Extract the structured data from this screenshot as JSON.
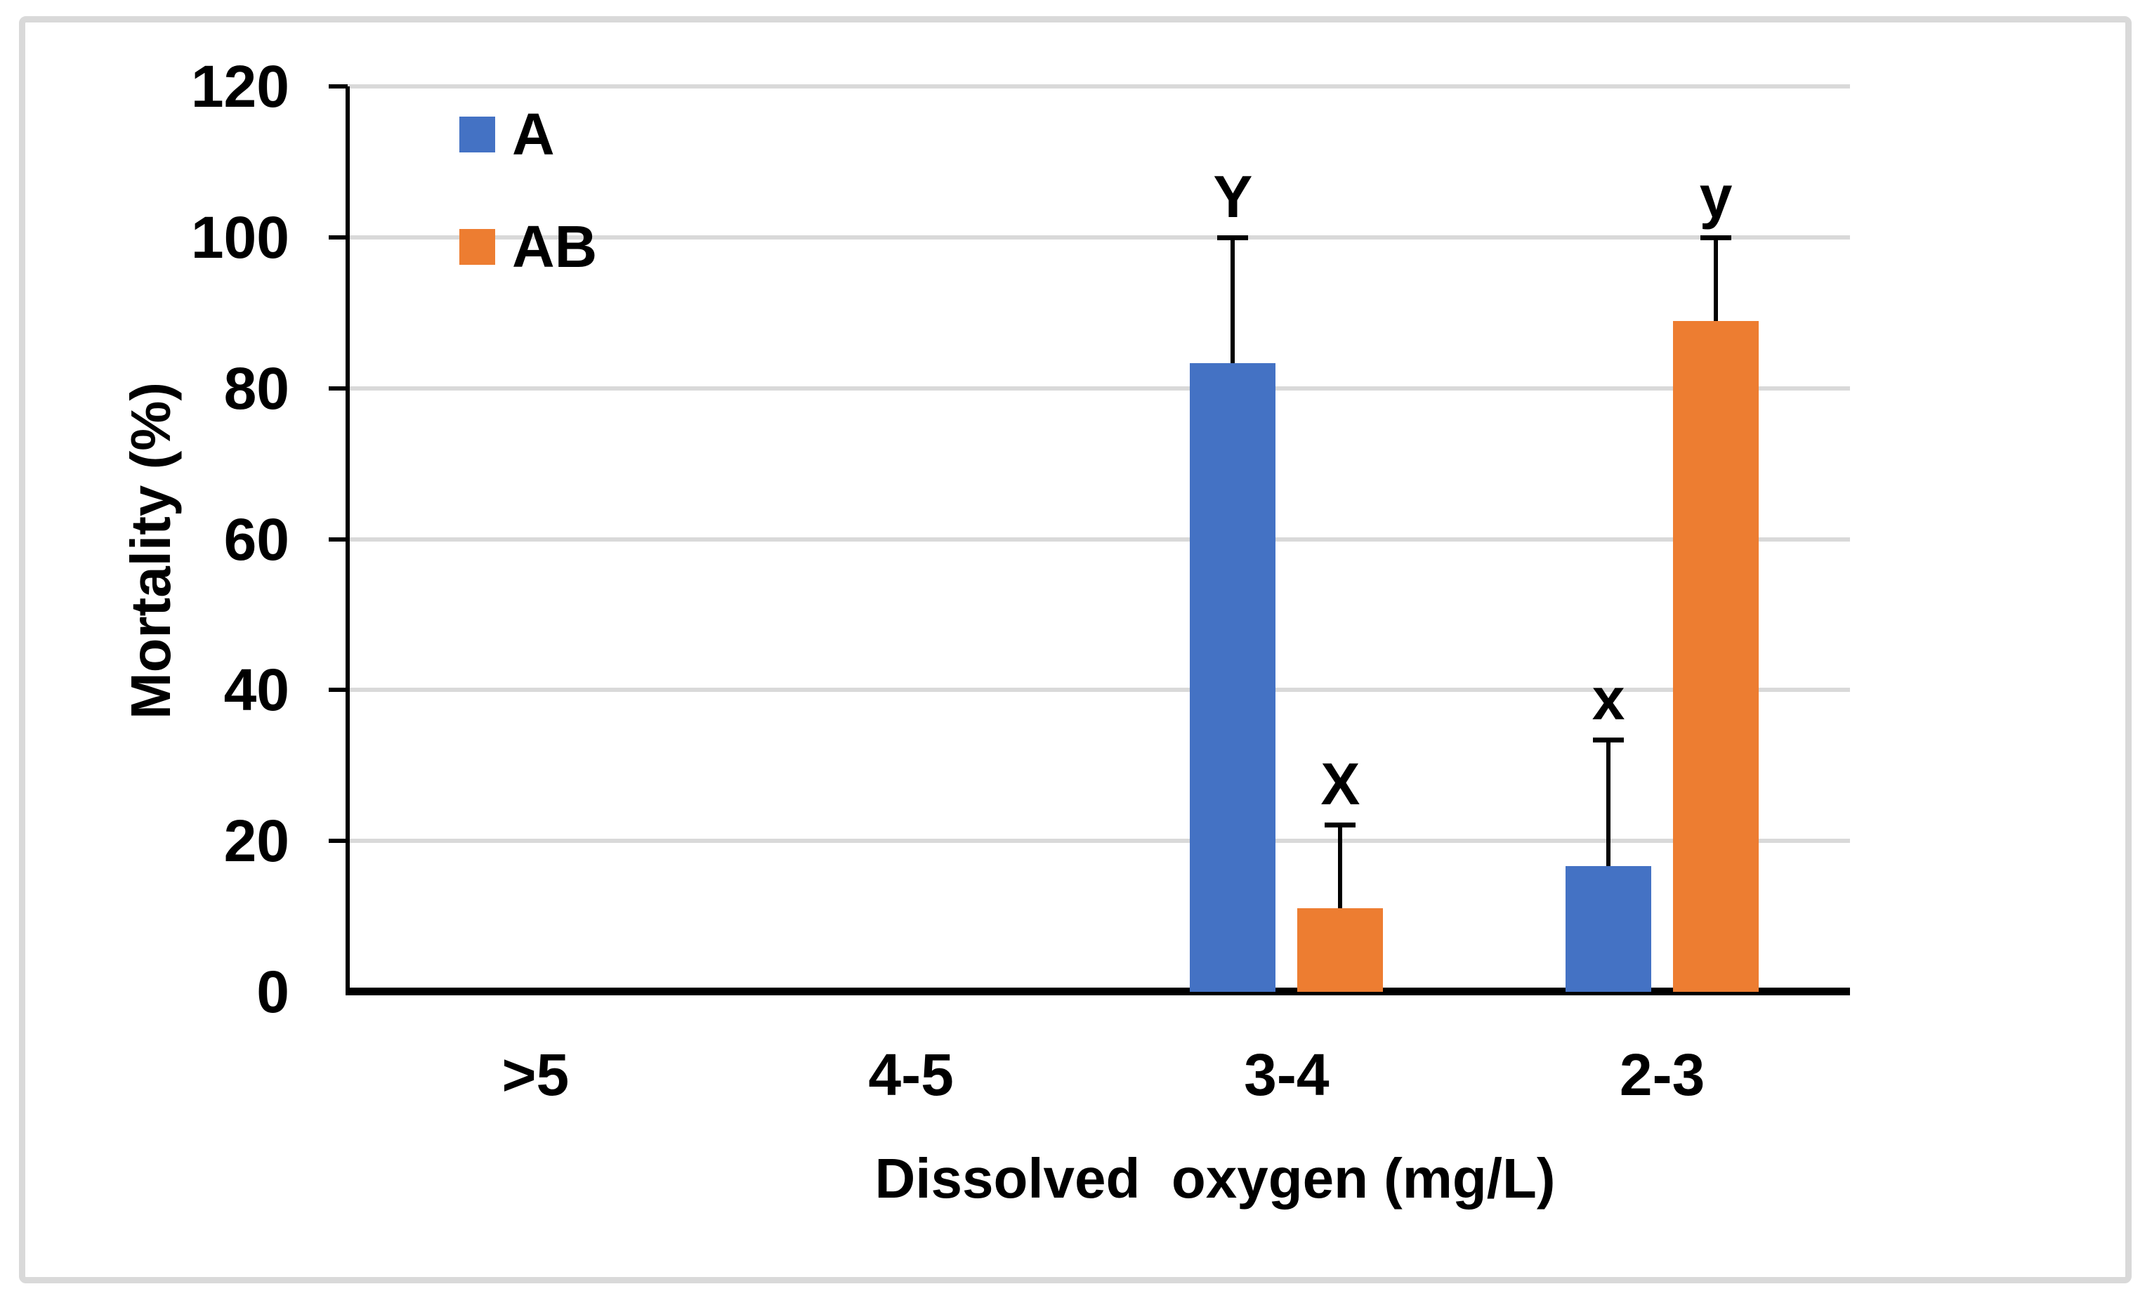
{
  "chart_data": {
    "type": "bar",
    "title": "",
    "xlabel": "Dissolved  oxygen (mg/L)",
    "ylabel": "Mortality (%)",
    "categories": [
      ">5",
      "4-5",
      "3-4",
      "2-3"
    ],
    "series": [
      {
        "name": "A",
        "color": "#4472C4",
        "values": [
          0,
          0,
          83.3,
          16.7
        ],
        "error_up": [
          0,
          0,
          16.7,
          16.7
        ],
        "letters": [
          "",
          "",
          "Y",
          "x"
        ]
      },
      {
        "name": "AB",
        "color": "#ED7D31",
        "values": [
          0,
          0,
          11.1,
          88.9
        ],
        "error_up": [
          0,
          0,
          11.1,
          11.1
        ],
        "letters": [
          "",
          "",
          "X",
          "y"
        ]
      }
    ],
    "ylim": [
      0,
      120
    ],
    "yticks": [
      0,
      20,
      40,
      60,
      80,
      100,
      120
    ],
    "grid": "horizontal",
    "legend_position": "top-left-inside",
    "gridline_color": "#d9d9d9",
    "axis_color": "#000000",
    "error_bar_color": "#000000",
    "frame_border_color": "#d9d9d9",
    "background": "#ffffff"
  }
}
